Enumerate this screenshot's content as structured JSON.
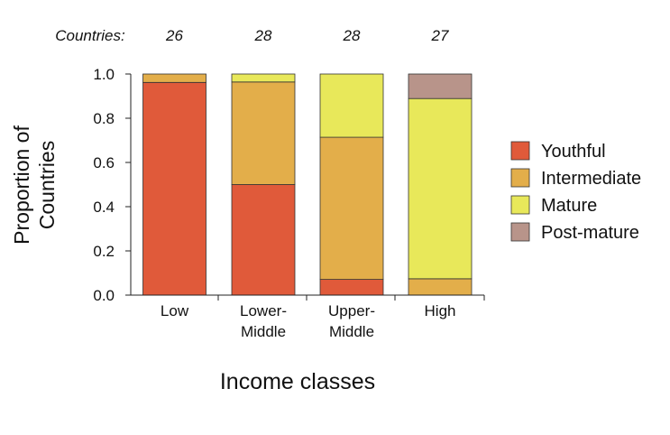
{
  "chart_data": {
    "type": "bar",
    "stacked": true,
    "title": "",
    "xlabel": "Income classes",
    "ylabel": [
      "Proportion of",
      "Countries"
    ],
    "ylim": [
      0,
      1
    ],
    "yticks": [
      "0.0",
      "0.2",
      "0.4",
      "0.6",
      "0.8",
      "1.0"
    ],
    "categories": [
      [
        "Low"
      ],
      [
        "Lower-",
        "Middle"
      ],
      [
        "Upper-",
        "Middle"
      ],
      [
        "High"
      ]
    ],
    "counts_label": "Countries:",
    "counts": [
      "26",
      "28",
      "28",
      "27"
    ],
    "series": [
      {
        "name": "Youthful",
        "color": "#E05A3A",
        "values": [
          0.962,
          0.5,
          0.071,
          0.0
        ]
      },
      {
        "name": "Intermediate",
        "color": "#E3AE4A",
        "values": [
          0.038,
          0.464,
          0.643,
          0.074
        ]
      },
      {
        "name": "Mature",
        "color": "#E8E85A",
        "values": [
          0.0,
          0.036,
          0.286,
          0.815
        ]
      },
      {
        "name": "Post-mature",
        "color": "#B8948A",
        "values": [
          0.0,
          0.0,
          0.0,
          0.111
        ]
      }
    ],
    "legend": "right",
    "grid": false
  }
}
